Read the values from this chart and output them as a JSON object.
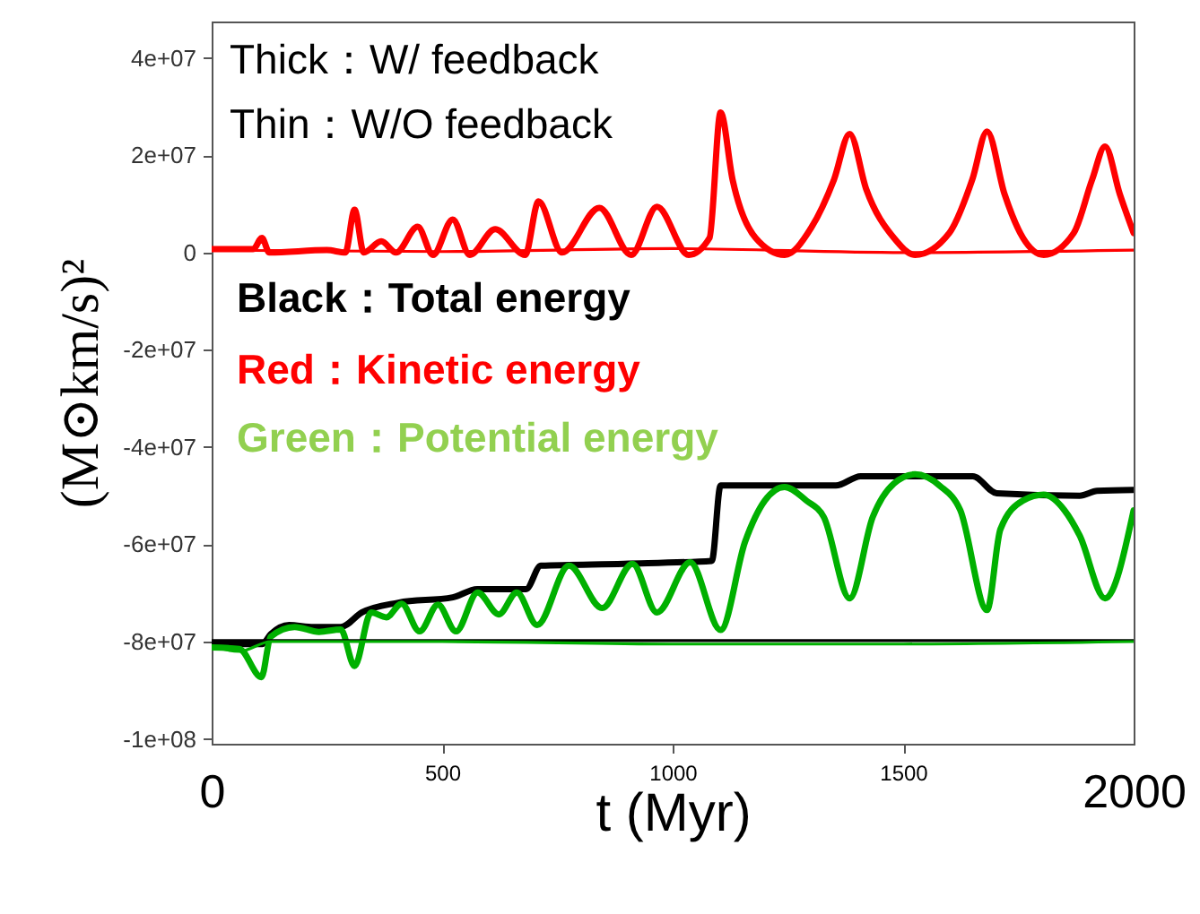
{
  "chart_data": {
    "type": "line",
    "xlabel": "t (Myr)",
    "ylabel": "(M⊙km/s)²",
    "xlim": [
      0,
      2000
    ],
    "xticks": [
      500,
      1000,
      1500
    ],
    "x2lim": [
      0,
      2000
    ],
    "x2ticks": [
      0,
      2000
    ],
    "ylim": [
      -101000000,
      47500000
    ],
    "yticks": [
      {
        "value": 40000000,
        "label": "4e+07"
      },
      {
        "value": 20000000,
        "label": "2e+07"
      },
      {
        "value": 0,
        "label": "0"
      },
      {
        "value": -20000000,
        "label": "-2e+07"
      },
      {
        "value": -40000000,
        "label": "-4e+07"
      },
      {
        "value": -60000000,
        "label": "-6e+07"
      },
      {
        "value": -80000000,
        "label": "-8e+07"
      },
      {
        "value": -100000000,
        "label": "-1e+08"
      }
    ],
    "annotations": [
      "Thick：W/ feedback",
      "Thin：W/O feedback",
      "Black：Total energy",
      "Red：Kinetic energy",
      "Green：Potential energy"
    ],
    "series": [
      {
        "color": "#ff0000",
        "x": [
          0,
          90,
          109,
          125,
          250,
          290,
          310,
          330,
          368,
          400,
          447,
          480,
          523,
          560,
          615,
          680,
          709,
          760,
          841,
          910,
          966,
          1035,
          1080,
          1104,
          1130,
          1180,
          1243,
          1300,
          1350,
          1384,
          1420,
          1480,
          1526,
          1600,
          1650,
          1682,
          1720,
          1760,
          1805,
          1870,
          1910,
          1938,
          1970,
          2000
        ],
        "values": [
          700000,
          700000,
          3000000,
          0,
          500000,
          0,
          8800000,
          0,
          2300000,
          0,
          5300000,
          -500000,
          6800000,
          -500000,
          4800000,
          -500000,
          10500000,
          0,
          9200000,
          -500000,
          9400000,
          -500000,
          3000000,
          28800000,
          15000000,
          3000000,
          -500000,
          5000000,
          15000000,
          24400000,
          13000000,
          3000000,
          -500000,
          4000000,
          15000000,
          24900000,
          12000000,
          3000000,
          -500000,
          4000000,
          15000000,
          21800000,
          12000000,
          4000000
        ]
      },
      {
        "color": "#000000",
        "x": [
          0,
          110,
          128,
          168,
          221,
          280,
          326,
          405,
          523,
          576,
          682,
          714,
          894,
          1085,
          1104,
          1354,
          1408,
          1651,
          1703,
          1883,
          1921,
          2000
        ],
        "values": [
          -80500000,
          -80500000,
          -78500000,
          -76600000,
          -77000000,
          -77000000,
          -74000000,
          -72000000,
          -70900000,
          -69200000,
          -69200000,
          -64400000,
          -64000000,
          -63400000,
          -47900000,
          -47900000,
          -46000000,
          -46000000,
          -49500000,
          -50000000,
          -49000000,
          -48800000
        ]
      },
      {
        "color": "#00b000",
        "x": [
          0,
          60,
          108,
          128,
          180,
          233,
          280,
          310,
          346,
          379,
          412,
          451,
          491,
          530,
          577,
          623,
          662,
          706,
          775,
          847,
          913,
          966,
          1038,
          1104,
          1157,
          1200,
          1243,
          1290,
          1328,
          1384,
          1434,
          1480,
          1526,
          1580,
          1624,
          1682,
          1711,
          1760,
          1805,
          1850,
          1883,
          1938,
          2000
        ],
        "values": [
          -81200000,
          -81500000,
          -87300000,
          -79000000,
          -77000000,
          -78000000,
          -77500000,
          -85000000,
          -74000000,
          -75000000,
          -72200000,
          -77900000,
          -72400000,
          -77900000,
          -69900000,
          -74400000,
          -69900000,
          -76600000,
          -64400000,
          -73100000,
          -64000000,
          -74000000,
          -63700000,
          -77600000,
          -59500000,
          -51000000,
          -48200000,
          -51000000,
          -54400000,
          -71100000,
          -54400000,
          -47500000,
          -45600000,
          -48000000,
          -53000000,
          -73500000,
          -56900000,
          -51000000,
          -49800000,
          -53000000,
          -58200000,
          -71100000,
          -53000000
        ]
      },
      {
        "color": "#ff0000",
        "x": [
          0,
          500,
          1000,
          1500,
          2000
        ],
        "values": [
          500000,
          200000,
          800000,
          0,
          500000
        ]
      },
      {
        "color": "#000000",
        "x": [
          0,
          500,
          1000,
          1500,
          2000
        ],
        "values": [
          -79800000,
          -79800000,
          -79800000,
          -79800000,
          -79800000
        ]
      },
      {
        "color": "#00b000",
        "x": [
          0,
          60,
          128,
          500,
          1000,
          1500,
          2000
        ],
        "values": [
          -81000000,
          -82000000,
          -80000000,
          -80000000,
          -80500000,
          -80500000,
          -80000000
        ]
      }
    ]
  }
}
